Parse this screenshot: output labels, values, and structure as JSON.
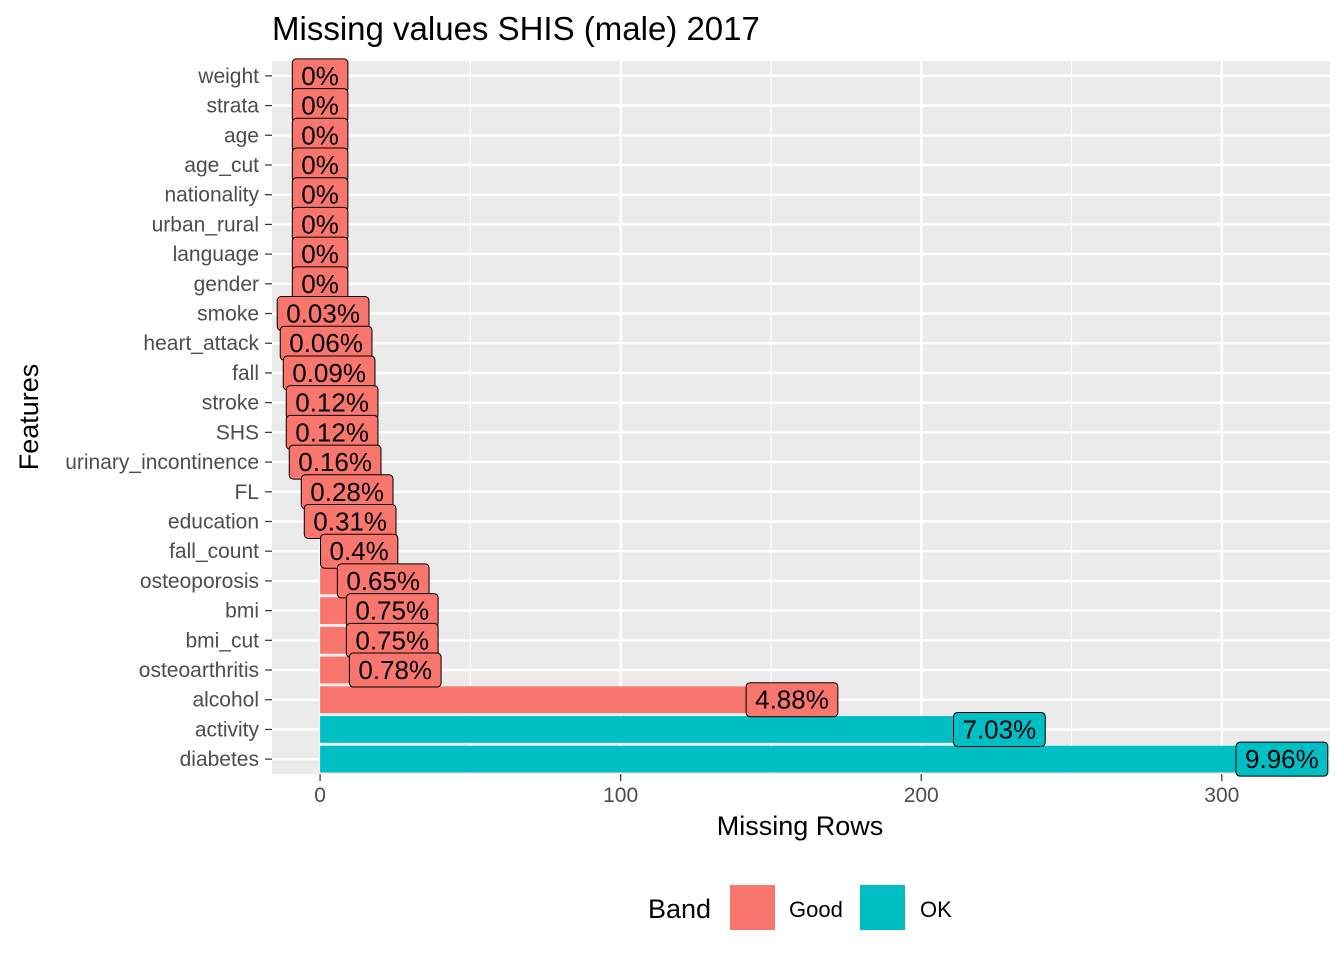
{
  "chart_data": {
    "type": "bar",
    "orientation": "horizontal",
    "title": "Missing values SHIS (male) 2017",
    "xlabel": "Missing Rows",
    "ylabel": "Features",
    "xlim": [
      -16,
      336
    ],
    "xticks": [
      0,
      100,
      200,
      300
    ],
    "grid": true,
    "legend": {
      "title": "Band",
      "position": "bottom",
      "entries": [
        {
          "label": "Good",
          "color": "#F8766D"
        },
        {
          "label": "OK",
          "color": "#00BFC4"
        }
      ]
    },
    "categories": [
      "weight",
      "strata",
      "age",
      "age_cut",
      "nationality",
      "urban_rural",
      "language",
      "gender",
      "smoke",
      "heart_attack",
      "fall",
      "stroke",
      "SHS",
      "urinary_incontinence",
      "FL",
      "education",
      "fall_count",
      "osteoporosis",
      "bmi",
      "bmi_cut",
      "osteoarthritis",
      "alcohol",
      "activity",
      "diabetes"
    ],
    "values": [
      0,
      0,
      0,
      0,
      0,
      0,
      0,
      0,
      1,
      2,
      3,
      4,
      4,
      5,
      9,
      10,
      13,
      21,
      24,
      24,
      25,
      157,
      226,
      320
    ],
    "labels": [
      "0%",
      "0%",
      "0%",
      "0%",
      "0%",
      "0%",
      "0%",
      "0%",
      "0.03%",
      "0.06%",
      "0.09%",
      "0.12%",
      "0.12%",
      "0.16%",
      "0.28%",
      "0.31%",
      "0.4%",
      "0.65%",
      "0.75%",
      "0.75%",
      "0.78%",
      "4.88%",
      "7.03%",
      "9.96%"
    ],
    "bands": [
      "Good",
      "Good",
      "Good",
      "Good",
      "Good",
      "Good",
      "Good",
      "Good",
      "Good",
      "Good",
      "Good",
      "Good",
      "Good",
      "Good",
      "Good",
      "Good",
      "Good",
      "Good",
      "Good",
      "Good",
      "Good",
      "Good",
      "OK",
      "OK"
    ]
  }
}
